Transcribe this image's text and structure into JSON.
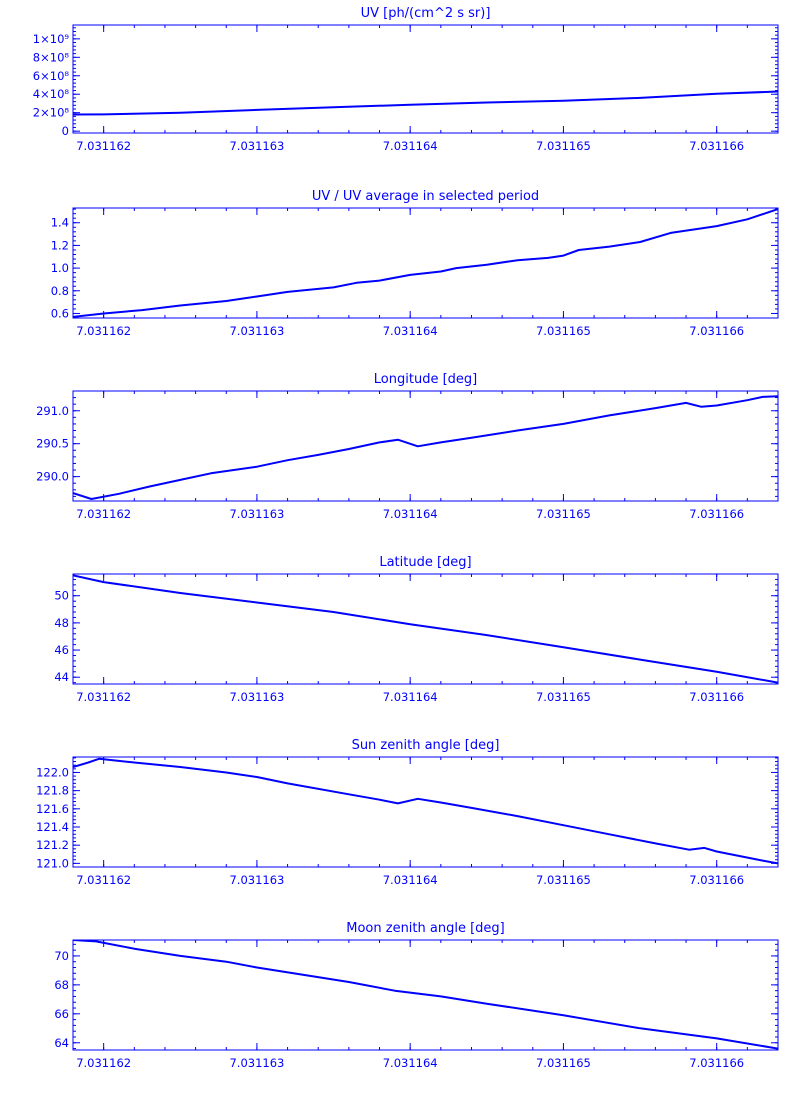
{
  "page": {
    "background": "#ffffff",
    "ink_color": "#0000ff"
  },
  "chart_data": [
    {
      "type": "line",
      "title": "UV [ph/(cm^2 s sr)]",
      "xlim": [
        7.0311618,
        7.0311664
      ],
      "ylim": [
        -20000000,
        1150000000
      ],
      "xticks": [
        "7.031162",
        "7.031163",
        "7.031164",
        "7.031165",
        "7.031166"
      ],
      "xtick_values": [
        7.031162,
        7.031163,
        7.031164,
        7.031165,
        7.031166
      ],
      "yticks": [
        "0",
        "2×10⁸",
        "4×10⁸",
        "6×10⁸",
        "8×10⁸",
        "1×10⁹"
      ],
      "ytick_values": [
        0,
        200000000,
        400000000,
        600000000,
        800000000,
        1000000000
      ],
      "series": [
        {
          "x": [
            7.0311618,
            7.031162,
            7.0311625,
            7.031163,
            7.0311635,
            7.031164,
            7.0311645,
            7.031165,
            7.0311655,
            7.031166,
            7.0311664
          ],
          "y": [
            180000000,
            182000000,
            200000000,
            230000000,
            260000000,
            285000000,
            310000000,
            330000000,
            360000000,
            405000000,
            430000000
          ]
        }
      ]
    },
    {
      "type": "line",
      "title": "UV / UV average in selected period",
      "xlim": [
        7.0311618,
        7.0311664
      ],
      "ylim": [
        0.56,
        1.53
      ],
      "xticks": [
        "7.031162",
        "7.031163",
        "7.031164",
        "7.031165",
        "7.031166"
      ],
      "xtick_values": [
        7.031162,
        7.031163,
        7.031164,
        7.031165,
        7.031166
      ],
      "yticks": [
        "0.6",
        "0.8",
        "1.0",
        "1.2",
        "1.4"
      ],
      "ytick_values": [
        0.6,
        0.8,
        1.0,
        1.2,
        1.4
      ],
      "series": [
        {
          "x": [
            7.0311618,
            7.031162,
            7.03116225,
            7.0311625,
            7.0311628,
            7.031163,
            7.0311632,
            7.0311635,
            7.03116365,
            7.0311638,
            7.031164,
            7.0311642,
            7.0311643,
            7.0311645,
            7.0311647,
            7.0311649,
            7.031165,
            7.0311651,
            7.0311653,
            7.0311655,
            7.0311657,
            7.031166,
            7.0311662,
            7.0311664
          ],
          "y": [
            0.57,
            0.6,
            0.63,
            0.67,
            0.71,
            0.75,
            0.79,
            0.83,
            0.87,
            0.89,
            0.94,
            0.97,
            1.0,
            1.03,
            1.07,
            1.09,
            1.11,
            1.16,
            1.19,
            1.23,
            1.31,
            1.37,
            1.43,
            1.52
          ]
        }
      ]
    },
    {
      "type": "line",
      "title": "Longitude [deg]",
      "xlim": [
        7.0311618,
        7.0311664
      ],
      "ylim": [
        289.63,
        291.3
      ],
      "xticks": [
        "7.031162",
        "7.031163",
        "7.031164",
        "7.031165",
        "7.031166"
      ],
      "xtick_values": [
        7.031162,
        7.031163,
        7.031164,
        7.031165,
        7.031166
      ],
      "yticks": [
        "290.0",
        "290.5",
        "291.0"
      ],
      "ytick_values": [
        290.0,
        290.5,
        291.0
      ],
      "series": [
        {
          "x": [
            7.0311618,
            7.03116192,
            7.0311621,
            7.0311623,
            7.0311625,
            7.0311627,
            7.031163,
            7.0311632,
            7.0311634,
            7.0311636,
            7.0311638,
            7.03116392,
            7.03116405,
            7.0311642,
            7.0311644,
            7.0311647,
            7.031165,
            7.0311653,
            7.0311656,
            7.0311658,
            7.0311659,
            7.031166,
            7.0311662,
            7.0311663,
            7.0311664
          ],
          "y": [
            289.75,
            289.66,
            289.74,
            289.85,
            289.95,
            290.05,
            290.15,
            290.25,
            290.33,
            290.42,
            290.52,
            290.56,
            290.46,
            290.52,
            290.59,
            290.7,
            290.8,
            290.93,
            291.04,
            291.12,
            291.06,
            291.08,
            291.16,
            291.21,
            291.22
          ]
        }
      ]
    },
    {
      "type": "line",
      "title": "Latitude [deg]",
      "xlim": [
        7.0311618,
        7.0311664
      ],
      "ylim": [
        43.5,
        51.6
      ],
      "xticks": [
        "7.031162",
        "7.031163",
        "7.031164",
        "7.031165",
        "7.031166"
      ],
      "xtick_values": [
        7.031162,
        7.031163,
        7.031164,
        7.031165,
        7.031166
      ],
      "yticks": [
        "44",
        "46",
        "48",
        "50"
      ],
      "ytick_values": [
        44,
        46,
        48,
        50
      ],
      "series": [
        {
          "x": [
            7.0311618,
            7.031162,
            7.0311625,
            7.031163,
            7.0311635,
            7.031164,
            7.0311645,
            7.031165,
            7.0311655,
            7.031166,
            7.0311664
          ],
          "y": [
            51.5,
            51.0,
            50.2,
            49.5,
            48.8,
            47.9,
            47.1,
            46.2,
            45.3,
            44.4,
            43.6
          ]
        }
      ]
    },
    {
      "type": "line",
      "title": "Sun zenith angle [deg]",
      "xlim": [
        7.0311618,
        7.0311664
      ],
      "ylim": [
        120.96,
        122.17
      ],
      "xticks": [
        "7.031162",
        "7.031163",
        "7.031164",
        "7.031165",
        "7.031166"
      ],
      "xtick_values": [
        7.031162,
        7.031163,
        7.031164,
        7.031165,
        7.031166
      ],
      "yticks": [
        "121.0",
        "121.2",
        "121.4",
        "121.6",
        "121.8",
        "122.0"
      ],
      "ytick_values": [
        121.0,
        121.2,
        121.4,
        121.6,
        121.8,
        122.0
      ],
      "series": [
        {
          "x": [
            7.0311618,
            7.0311619,
            7.03116197,
            7.0311622,
            7.0311625,
            7.0311628,
            7.031163,
            7.0311632,
            7.0311636,
            7.0311638,
            7.03116392,
            7.03116405,
            7.0311642,
            7.0311644,
            7.0311647,
            7.031165,
            7.0311653,
            7.0311656,
            7.03116582,
            7.03116592,
            7.031166,
            7.0311663,
            7.0311664
          ],
          "y": [
            122.06,
            122.11,
            122.15,
            122.11,
            122.06,
            122.0,
            121.95,
            121.88,
            121.76,
            121.7,
            121.66,
            121.71,
            121.67,
            121.61,
            121.52,
            121.42,
            121.32,
            121.22,
            121.15,
            121.17,
            121.13,
            121.03,
            121.0
          ]
        }
      ]
    },
    {
      "type": "line",
      "title": "Moon zenith angle [deg]",
      "xlim": [
        7.0311618,
        7.0311664
      ],
      "ylim": [
        63.5,
        71.1
      ],
      "xticks": [
        "7.031162",
        "7.031163",
        "7.031164",
        "7.031165",
        "7.031166"
      ],
      "xtick_values": [
        7.031162,
        7.031163,
        7.031164,
        7.031165,
        7.031166
      ],
      "yticks": [
        "64",
        "66",
        "68",
        "70"
      ],
      "ytick_values": [
        64,
        66,
        68,
        70
      ],
      "series": [
        {
          "x": [
            7.0311618,
            7.03116195,
            7.0311622,
            7.0311625,
            7.0311628,
            7.031163,
            7.0311633,
            7.0311636,
            7.0311639,
            7.0311642,
            7.0311645,
            7.031165,
            7.0311655,
            7.031166,
            7.0311664
          ],
          "y": [
            71.1,
            71.0,
            70.5,
            70.0,
            69.6,
            69.2,
            68.7,
            68.2,
            67.6,
            67.2,
            66.7,
            65.9,
            65.0,
            64.3,
            63.6
          ]
        }
      ]
    }
  ]
}
